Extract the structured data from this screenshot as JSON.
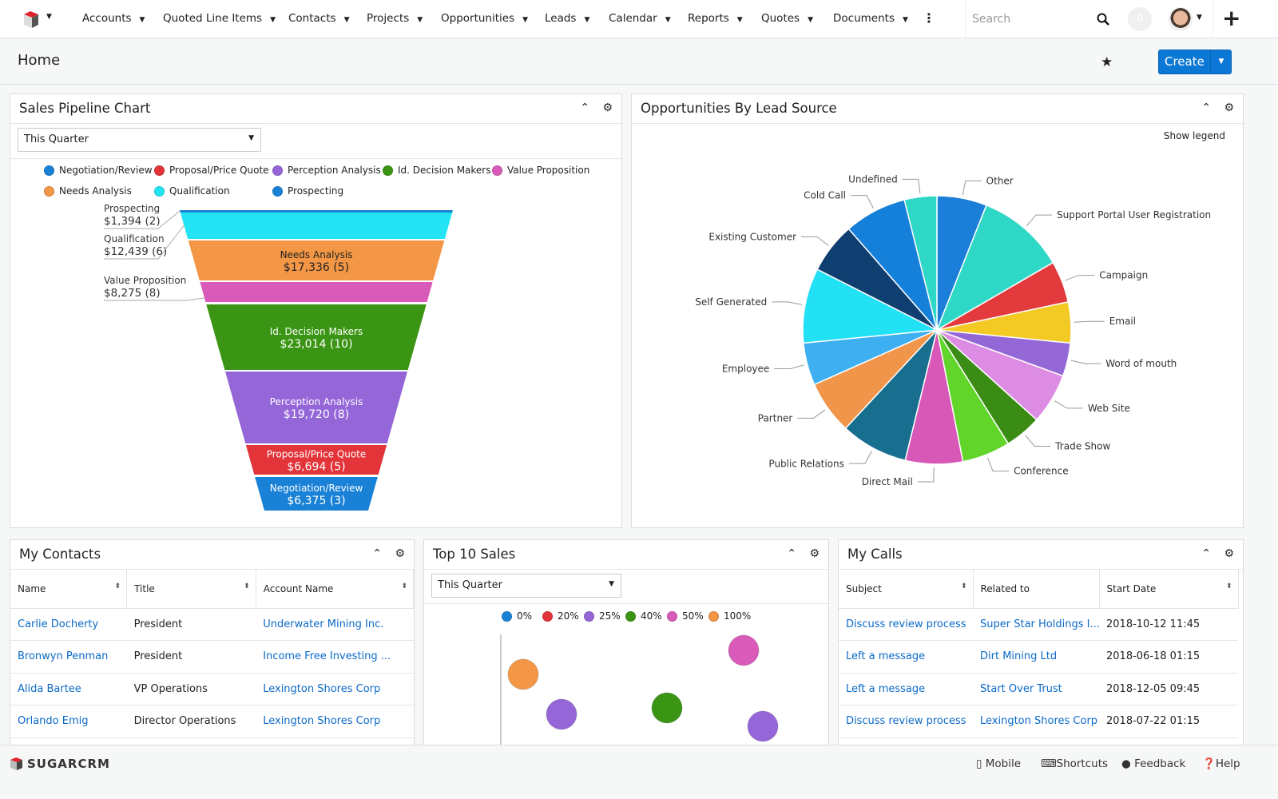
{
  "nav": {
    "items": [
      "Accounts",
      "Quoted Line Items",
      "Contacts",
      "Projects",
      "Opportunities",
      "Leads",
      "Calendar",
      "Reports",
      "Quotes",
      "Documents"
    ],
    "search_placeholder": "Search",
    "notifications": "0"
  },
  "header": {
    "title": "Home",
    "create_label": "Create"
  },
  "pipeline": {
    "title": "Sales Pipeline Chart",
    "filter": "This Quarter",
    "legend": [
      {
        "name": "Negotiation/Review",
        "color": "#1a82d6"
      },
      {
        "name": "Proposal/Price Quote",
        "color": "#e3343a"
      },
      {
        "name": "Perception Analysis",
        "color": "#9466d8"
      },
      {
        "name": "Id. Decision Makers",
        "color": "#3b9514"
      },
      {
        "name": "Value Proposition",
        "color": "#d95ab8"
      },
      {
        "name": "Needs Analysis",
        "color": "#f39646"
      },
      {
        "name": "Qualification",
        "color": "#24e3f4"
      },
      {
        "name": "Prospecting",
        "color": "#1a82d6"
      }
    ],
    "chart_data": {
      "type": "funnel",
      "stages": [
        {
          "name": "Prospecting",
          "amount": "$1,394",
          "count": 2,
          "value": 1394,
          "color": "#1a82d6"
        },
        {
          "name": "Qualification",
          "amount": "$12,439",
          "count": 6,
          "value": 12439,
          "color": "#24e3f4"
        },
        {
          "name": "Needs Analysis",
          "amount": "$17,336",
          "count": 5,
          "value": 17336,
          "color": "#f39646"
        },
        {
          "name": "Value Proposition",
          "amount": "$8,275",
          "count": 8,
          "value": 8275,
          "color": "#d95ab8"
        },
        {
          "name": "Id. Decision Makers",
          "amount": "$23,014",
          "count": 10,
          "value": 23014,
          "color": "#3b9514"
        },
        {
          "name": "Perception Analysis",
          "amount": "$19,720",
          "count": 8,
          "value": 19720,
          "color": "#9466d8"
        },
        {
          "name": "Proposal/Price Quote",
          "amount": "$6,694",
          "count": 5,
          "value": 6694,
          "color": "#e3343a"
        },
        {
          "name": "Negotiation/Review",
          "amount": "$6,375",
          "count": 3,
          "value": 6375,
          "color": "#1a82d6"
        }
      ]
    }
  },
  "leadsource": {
    "title": "Opportunities By Lead Source",
    "show_legend": "Show legend",
    "chart_data": {
      "type": "pie",
      "slices": [
        {
          "name": "Other",
          "value": 6.0,
          "color": "#1b7fd9"
        },
        {
          "name": "Support Portal User Registration",
          "value": 10.6,
          "color": "#2fd8c6"
        },
        {
          "name": "Campaign",
          "value": 5.0,
          "color": "#e23a3d"
        },
        {
          "name": "Email",
          "value": 4.9,
          "color": "#f3c923"
        },
        {
          "name": "Word of mouth",
          "value": 4.0,
          "color": "#9467d6"
        },
        {
          "name": "Web Site",
          "value": 6.1,
          "color": "#dc8ce3"
        },
        {
          "name": "Trade Show",
          "value": 4.4,
          "color": "#3a8c15"
        },
        {
          "name": "Conference",
          "value": 5.8,
          "color": "#62d52b"
        },
        {
          "name": "Direct Mail",
          "value": 6.9,
          "color": "#d758b6"
        },
        {
          "name": "Public Relations",
          "value": 8.1,
          "color": "#176e8e"
        },
        {
          "name": "Partner",
          "value": 6.4,
          "color": "#f1954a"
        },
        {
          "name": "Employee",
          "value": 5.1,
          "color": "#3eaff0"
        },
        {
          "name": "Self Generated",
          "value": 9.0,
          "color": "#22e1f4"
        },
        {
          "name": "Existing Customer",
          "value": 6.1,
          "color": "#0f3e70"
        },
        {
          "name": "Cold Call",
          "value": 7.5,
          "color": "#1480d9"
        },
        {
          "name": "Undefined",
          "value": 3.9,
          "color": "#2fd8c6"
        }
      ]
    }
  },
  "contacts": {
    "title": "My Contacts",
    "columns": [
      "Name",
      "Title",
      "Account Name"
    ],
    "rows": [
      [
        "Carlie Docherty",
        "President",
        "Underwater Mining Inc."
      ],
      [
        "Bronwyn Penman",
        "President",
        "Income Free Investing ..."
      ],
      [
        "Alida Bartee",
        "VP Operations",
        "Lexington Shores Corp"
      ],
      [
        "Orlando Emig",
        "Director Operations",
        "Lexington Shores Corp"
      ]
    ]
  },
  "topsales": {
    "title": "Top 10 Sales",
    "filter": "This Quarter",
    "chart_data": {
      "type": "scatter",
      "legend": [
        {
          "name": "0%",
          "color": "#1a82d6"
        },
        {
          "name": "20%",
          "color": "#e3343a"
        },
        {
          "name": "25%",
          "color": "#9466d8"
        },
        {
          "name": "40%",
          "color": "#3b9514"
        },
        {
          "name": "50%",
          "color": "#d95ab8"
        },
        {
          "name": "100%",
          "color": "#f39646"
        }
      ],
      "points": [
        {
          "x": 1,
          "y": 70,
          "group": "100%"
        },
        {
          "x": 3,
          "y": 20,
          "group": "25%"
        },
        {
          "x": 8.5,
          "y": 28,
          "group": "40%"
        },
        {
          "x": 12.5,
          "y": 100,
          "group": "50%"
        },
        {
          "x": 13.5,
          "y": 5,
          "group": "25%"
        }
      ]
    }
  },
  "calls": {
    "title": "My Calls",
    "columns": [
      "Subject",
      "Related to",
      "Start Date"
    ],
    "rows": [
      [
        "Discuss review process",
        "Super Star Holdings I...",
        "2018-10-12 11:45"
      ],
      [
        "Left a message",
        "Dirt Mining Ltd",
        "2018-06-18 01:15"
      ],
      [
        "Left a message",
        "Start Over Trust",
        "2018-12-05 09:45"
      ],
      [
        "Discuss review process",
        "Lexington Shores Corp",
        "2018-07-22 01:15"
      ]
    ]
  },
  "footer": {
    "brand": "SUGARCRM",
    "mobile": "Mobile",
    "shortcuts": "Shortcuts",
    "feedback": "Feedback",
    "help": "Help"
  }
}
